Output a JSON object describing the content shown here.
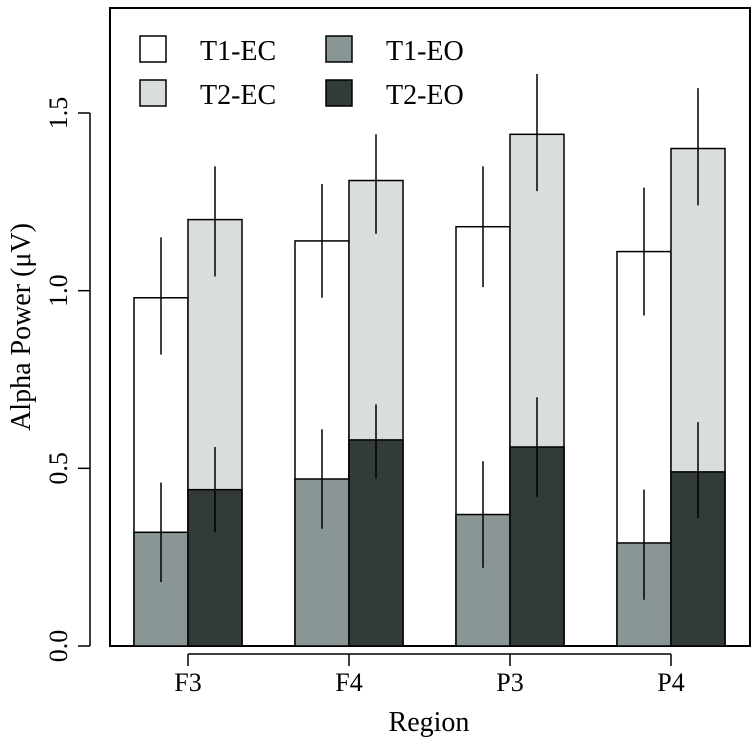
{
  "chart_data": {
    "type": "bar",
    "title": "",
    "xlabel": "Region",
    "ylabel": "Alpha Power (μV)",
    "ylim": [
      0,
      1.8
    ],
    "yticks": [
      0.0,
      0.5,
      1.0,
      1.5
    ],
    "ytick_labels": [
      "0.0",
      "0.5",
      "1.0",
      "1.5"
    ],
    "grid": false,
    "legend_position": "top-left",
    "categories": [
      "F3",
      "F4",
      "P3",
      "P4"
    ],
    "series": [
      {
        "name": "T1-EC",
        "values": [
          0.98,
          1.14,
          1.18,
          1.11
        ],
        "err_low": [
          0.82,
          0.98,
          1.01,
          0.93
        ],
        "err_high": [
          1.15,
          1.3,
          1.35,
          1.29
        ],
        "color": "#ffffff",
        "position": "left",
        "layer": "back"
      },
      {
        "name": "T2-EC",
        "values": [
          1.2,
          1.31,
          1.44,
          1.4
        ],
        "err_low": [
          1.04,
          1.16,
          1.28,
          1.24
        ],
        "err_high": [
          1.35,
          1.44,
          1.61,
          1.57
        ],
        "color": "#d9dedd",
        "position": "right",
        "layer": "back"
      },
      {
        "name": "T1-EO",
        "values": [
          0.32,
          0.47,
          0.37,
          0.29
        ],
        "err_low": [
          0.18,
          0.33,
          0.22,
          0.13
        ],
        "err_high": [
          0.46,
          0.61,
          0.52,
          0.44
        ],
        "color": "#8a9695",
        "position": "left",
        "layer": "front"
      },
      {
        "name": "T2-EO",
        "values": [
          0.44,
          0.58,
          0.56,
          0.49
        ],
        "err_low": [
          0.32,
          0.47,
          0.42,
          0.36
        ],
        "err_high": [
          0.56,
          0.68,
          0.7,
          0.63
        ],
        "color": "#333a3a",
        "position": "right",
        "layer": "front"
      }
    ],
    "legend_order": [
      "T1-EC",
      "T1-EO",
      "T2-EC",
      "T2-EO"
    ],
    "axis_color": "#000000"
  }
}
